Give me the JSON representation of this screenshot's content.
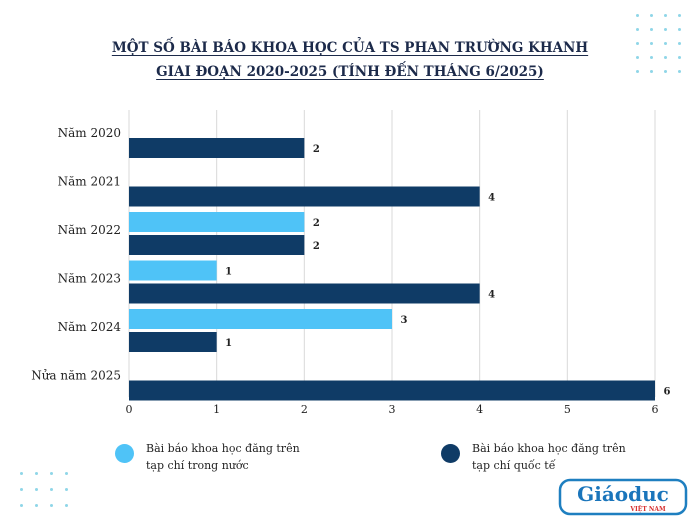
{
  "title_line1": "MỘT SỐ BÀI BÁO KHOA HỌC CỦA TS PHAN TRƯỜNG KHANH",
  "title_line2": "GIAI ĐOẠN 2020-2025 (TÍNH ĐẾN THÁNG 6/2025)",
  "chart_data": {
    "type": "bar",
    "orientation": "horizontal",
    "categories": [
      "Năm 2020",
      "Năm 2021",
      "Năm 2022",
      "Năm 2023",
      "Năm 2024",
      "Nửa năm 2025"
    ],
    "series": [
      {
        "name": "Bài báo khoa học đăng trên tạp chí trong nước",
        "color": "#4fc3f7",
        "values": [
          0,
          0,
          2,
          1,
          3,
          0
        ]
      },
      {
        "name": "Bài báo khoa học đăng trên tạp chí quốc tế",
        "color": "#0f3b66",
        "values": [
          2,
          4,
          2,
          4,
          1,
          6
        ]
      }
    ],
    "xlim": [
      0,
      6
    ],
    "xticks": [
      0,
      1,
      2,
      3,
      4,
      5,
      6
    ],
    "grid": "vertical",
    "legend_position": "bottom",
    "data_labels": true
  },
  "legend": {
    "item1_line1": "Bài báo khoa học đăng trên",
    "item1_line2": "tạp chí trong nước",
    "item2_line1": "Bài báo khoa học đăng trên",
    "item2_line2": "tạp chí quốc tế"
  },
  "watermark": {
    "text": "Giáoduc",
    "subtext": "VIỆT NAM"
  }
}
